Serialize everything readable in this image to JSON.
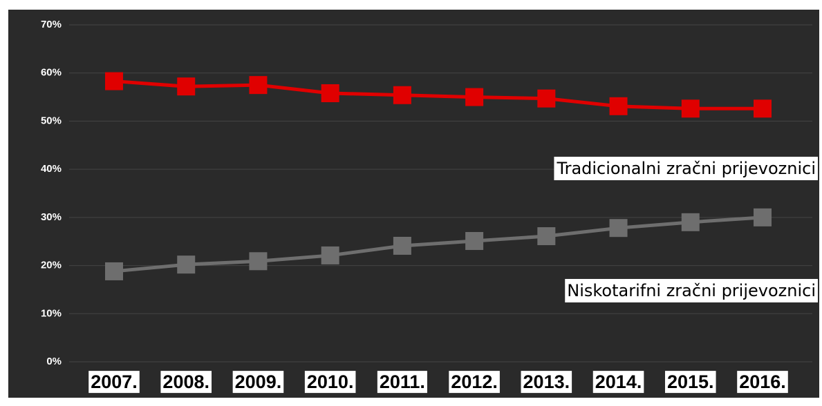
{
  "chart_data": {
    "type": "line",
    "categories": [
      "2007.",
      "2008.",
      "2009.",
      "2010.",
      "2011.",
      "2012.",
      "2013.",
      "2014.",
      "2015.",
      "2016."
    ],
    "series": [
      {
        "name": "Tradicionalni zračni prijevoznici",
        "color": "#e00000",
        "values": [
          58.3,
          57.2,
          57.5,
          55.8,
          55.4,
          55,
          54.7,
          53.1,
          52.6,
          52.6
        ]
      },
      {
        "name": "Niskotarifni zračni prijevoznici",
        "color": "#6e6e6e",
        "values": [
          18.8,
          20.2,
          20.9,
          22.1,
          24.1,
          25.1,
          26.1,
          27.8,
          29,
          30
        ]
      }
    ],
    "ylim": [
      0,
      70
    ],
    "yticks": [
      {
        "value": 0,
        "label": "0%"
      },
      {
        "value": 10,
        "label": "10%"
      },
      {
        "value": 20,
        "label": "20%"
      },
      {
        "value": 30,
        "label": "30%"
      },
      {
        "value": 40,
        "label": "40%"
      },
      {
        "value": 50,
        "label": "50%"
      },
      {
        "value": 60,
        "label": "60%"
      },
      {
        "value": 70,
        "label": "70%"
      }
    ],
    "grid": true
  }
}
